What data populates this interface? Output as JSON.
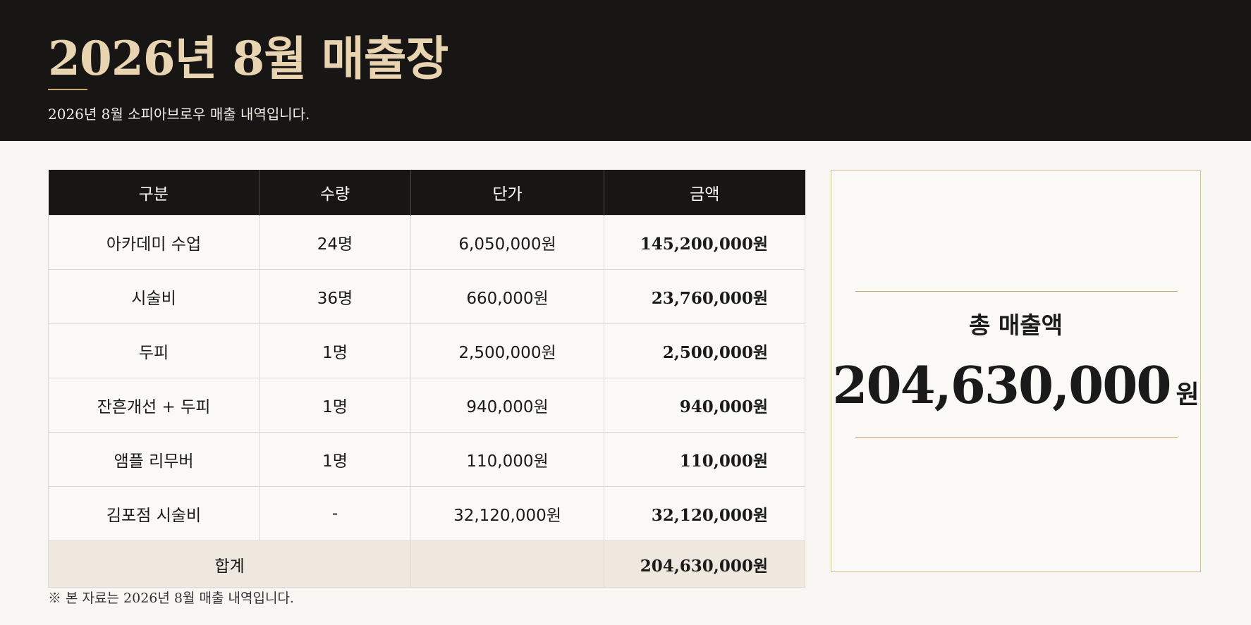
{
  "header": {
    "title": "2026년 8월 매출장",
    "subtitle": "2026년 8월 소피아브로우 매출 내역입니다."
  },
  "table": {
    "columns": [
      "구분",
      "수량",
      "단가",
      "금액"
    ],
    "rows": [
      [
        "아카데미 수업",
        "24명",
        "6,050,000원",
        "145,200,000원"
      ],
      [
        "시술비",
        "36명",
        "660,000원",
        "23,760,000원"
      ],
      [
        "두피",
        "1명",
        "2,500,000원",
        "2,500,000원"
      ],
      [
        "잔흔개선 + 두피",
        "1명",
        "940,000원",
        "940,000원"
      ],
      [
        "앰플 리무버",
        "1명",
        "110,000원",
        "110,000원"
      ],
      [
        "김포점 시술비",
        "-",
        "32,120,000원",
        "32,120,000원"
      ]
    ],
    "total": {
      "label": "합계",
      "amount": "204,630,000원"
    }
  },
  "summary": {
    "label": "총 매출액",
    "value": "204,630,000",
    "unit": "원"
  },
  "footnote": "※ 본 자료는 2026년 8월 매출 내역입니다."
}
